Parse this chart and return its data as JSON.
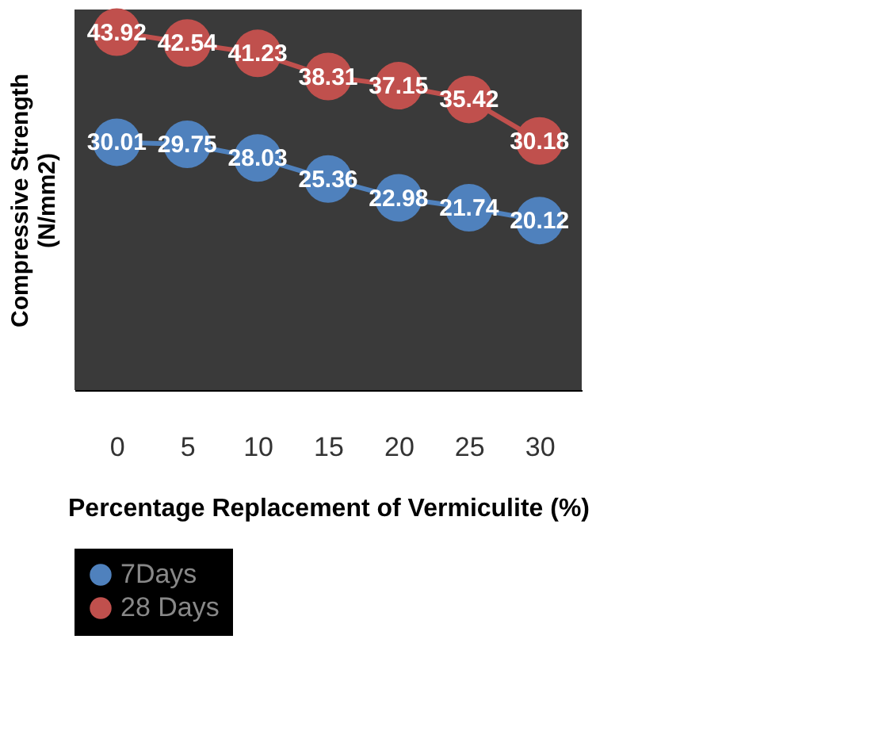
{
  "chart_data": {
    "type": "line",
    "xlabel": "Percentage Replacement of Vermiculite (%)",
    "ylabel": "Compressive Strength (N/mm2)",
    "categories": [
      "0",
      "5",
      "10",
      "15",
      "20",
      "25",
      "30"
    ],
    "series": [
      {
        "name": "7Days",
        "color": "#4f81bd",
        "values": [
          30.01,
          29.75,
          28.03,
          25.36,
          22.98,
          21.74,
          20.12
        ]
      },
      {
        "name": "28 Days",
        "color": "#c0504d",
        "values": [
          43.92,
          42.54,
          41.23,
          38.31,
          37.15,
          35.42,
          30.18
        ]
      }
    ],
    "data_labels": true,
    "marker": "circle",
    "legend": "bottom",
    "grid": false
  }
}
